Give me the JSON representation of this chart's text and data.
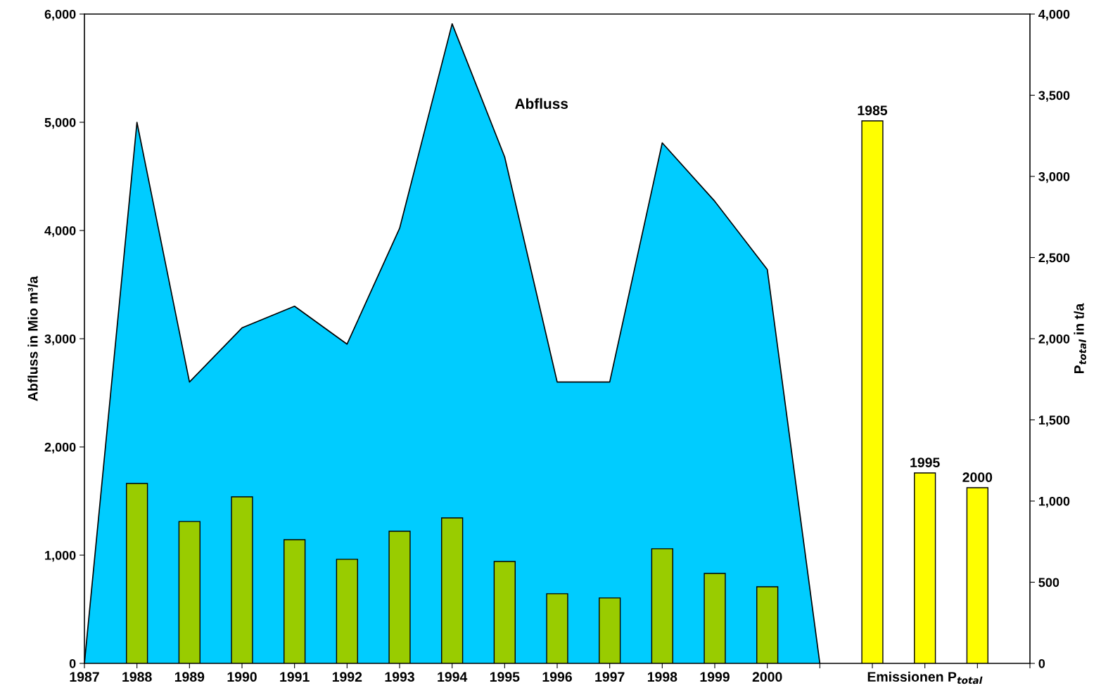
{
  "chart_data": {
    "type": "area",
    "ylabel": "Abfluss in Mio m³/a",
    "y2label": "P$_{total}$ in t/a",
    "categories": [
      "1987",
      "1988",
      "1989",
      "1990",
      "1991",
      "1992",
      "1993",
      "1994",
      "1995",
      "1996",
      "1997",
      "1998",
      "1999",
      "2000",
      null,
      null,
      "Emissionen P$_{total}$",
      null,
      null
    ],
    "series": [
      {
        "color": "#00ccff",
        "values": [
          0,
          5000,
          2600,
          3100,
          3300,
          2950,
          4020,
          5910,
          4680,
          2600,
          2600,
          4810,
          4270,
          3640,
          0,
          null,
          null,
          null,
          null
        ]
      },
      {
        "type": "bar",
        "axis": "y2",
        "color": "#99cc00",
        "values": [
          null,
          1108,
          874,
          1026,
          762,
          641,
          814,
          896,
          628,
          429,
          403,
          706,
          554,
          472,
          null,
          null,
          null,
          null,
          null
        ]
      },
      {
        "type": "bar",
        "axis": "y2",
        "color": "#ffff00",
        "values": [
          null,
          null,
          null,
          null,
          null,
          null,
          null,
          null,
          null,
          null,
          null,
          null,
          null,
          null,
          null,
          3342,
          1173,
          1082,
          null
        ]
      }
    ],
    "ylim": [
      0,
      6000
    ],
    "yticks": [
      0,
      {
        "value": 1000,
        "label": "1,000"
      },
      {
        "value": 2000,
        "label": "2,000"
      },
      {
        "value": 3000,
        "label": "3,000"
      },
      {
        "value": 4000,
        "label": "4,000"
      },
      {
        "value": 5000,
        "label": "5,000"
      },
      {
        "value": 6000,
        "label": "6,000"
      }
    ],
    "y2lim": [
      0,
      4000
    ],
    "y2ticks": [
      0,
      500,
      {
        "value": 1000,
        "label": "1,000"
      },
      {
        "value": 1500,
        "label": "1,500"
      },
      {
        "value": 2000,
        "label": "2,000"
      },
      {
        "value": 2500,
        "label": "2,500"
      },
      {
        "value": 3000,
        "label": "3,000"
      },
      {
        "value": 3500,
        "label": "3,500"
      },
      {
        "value": 4000,
        "label": "4,000"
      }
    ],
    "annotations": [
      "Abfluss",
      "1985",
      "1995",
      "2000"
    ],
    "grid": false,
    "legend": false
  }
}
